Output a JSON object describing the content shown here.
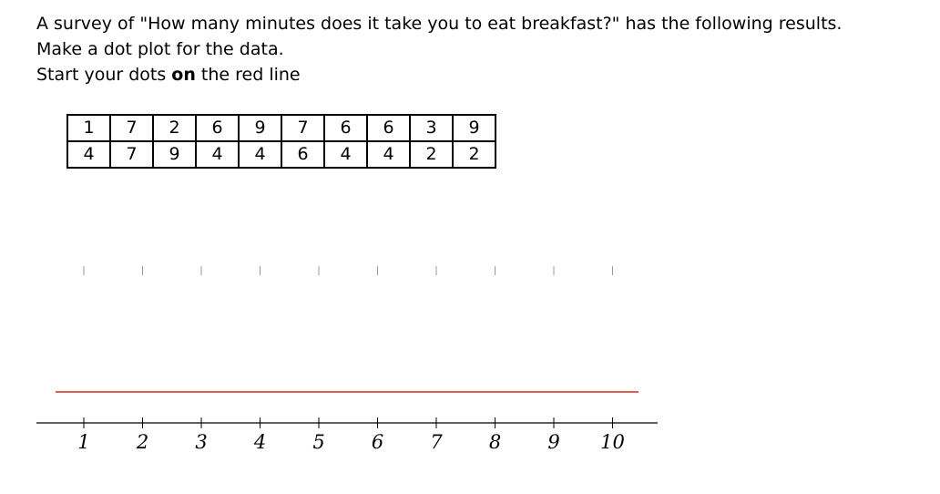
{
  "prompt": {
    "line1": "A survey of \"How many minutes does it take you to eat breakfast?\" has the following results.",
    "line2": "Make a dot plot for the data.",
    "line3_pre": "Start your dots ",
    "line3_bold": "on",
    "line3_post": " the red line"
  },
  "data_table": {
    "rows": [
      [
        "1",
        "7",
        "2",
        "6",
        "9",
        "7",
        "6",
        "6",
        "3",
        "9"
      ],
      [
        "4",
        "7",
        "9",
        "4",
        "4",
        "6",
        "4",
        "4",
        "2",
        "2"
      ]
    ]
  },
  "number_line": {
    "ticks": [
      "1",
      "2",
      "3",
      "4",
      "5",
      "6",
      "7",
      "8",
      "9",
      "10"
    ],
    "red_line_color": "#d9261c",
    "axis_color": "#000000",
    "guide_color": "#999999"
  }
}
